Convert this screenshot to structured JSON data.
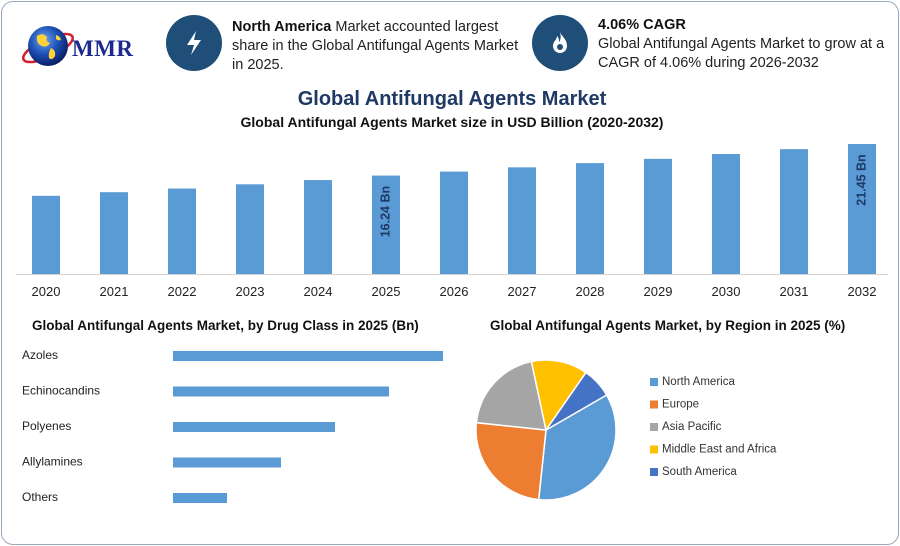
{
  "brand": {
    "logo_text": "MMR"
  },
  "kpis": [
    {
      "icon": "lightning-icon",
      "bold": "North America",
      "text": " Market accounted largest share in the Global Antifungal Agents Market in 2025."
    },
    {
      "icon": "flame-icon",
      "bold": "4.06% CAGR",
      "text": "Global Antifungal Agents Market to grow at a CAGR of 4.06% during 2026-2032"
    }
  ],
  "title": "Global Antifungal Agents Market",
  "subtitle": "Global Antifungal Agents Market size in USD Billion (2020-2032)",
  "colors": {
    "bar": "#5b9bd5",
    "hbar": "#5b9bd5",
    "pie": [
      "#5b9bd5",
      "#ed7d31",
      "#a5a5a5",
      "#ffc000",
      "#4472c4"
    ],
    "dark_label": "#1f3864",
    "kpi_circle": "#1f4e79"
  },
  "chart_data": [
    {
      "type": "bar",
      "title": "Global Antifungal Agents Market size in USD Billion (2020-2032)",
      "categories": [
        "2020",
        "2021",
        "2022",
        "2023",
        "2024",
        "2025",
        "2026",
        "2027",
        "2028",
        "2029",
        "2030",
        "2031",
        "2032"
      ],
      "values": [
        12.9,
        13.5,
        14.1,
        14.8,
        15.5,
        16.24,
        16.9,
        17.6,
        18.3,
        19.0,
        19.8,
        20.6,
        21.45
      ],
      "data_labels": {
        "2025": "16.24 Bn",
        "2032": "21.45 Bn"
      },
      "ylim": [
        0,
        21.45
      ]
    },
    {
      "type": "bar",
      "orientation": "horizontal",
      "title": "Global Antifungal Agents Market, by Drug Class in 2025 (Bn)",
      "categories": [
        "Azoles",
        "Echinocandins",
        "Polyenes",
        "Allylamines",
        "Others"
      ],
      "values": [
        5.0,
        4.0,
        3.0,
        2.0,
        1.0
      ]
    },
    {
      "type": "pie",
      "title": "Global Antifungal Agents Market, by Region in 2025 (%)",
      "labels": [
        "North America",
        "Europe",
        "Asia Pacific",
        "Middle East and Africa",
        "South America"
      ],
      "values": [
        35,
        25,
        20,
        13,
        7
      ],
      "legend": "right"
    }
  ]
}
